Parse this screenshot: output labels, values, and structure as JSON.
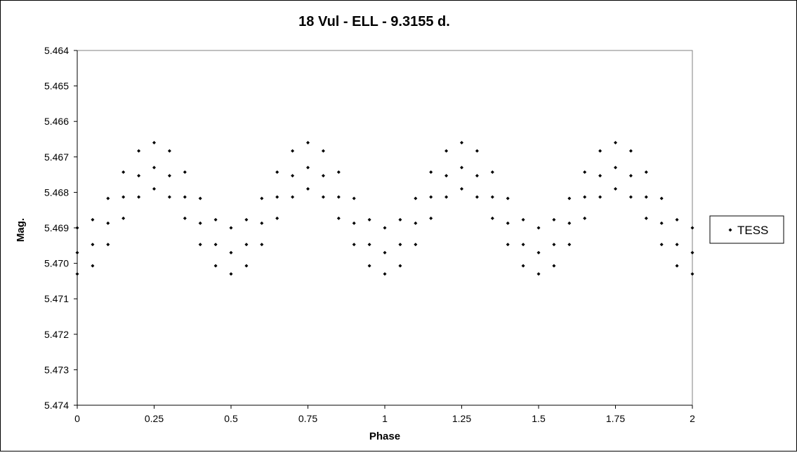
{
  "chart_data": {
    "type": "scatter",
    "title": "18 Vul - ELL - 9.3155 d.",
    "x_label": "Phase",
    "y_label": "Mag.",
    "xlim": [
      0,
      2
    ],
    "xticks": [
      0,
      0.25,
      0.5,
      0.75,
      1,
      1.25,
      1.5,
      1.75,
      2
    ],
    "ylim": [
      5.474,
      5.464
    ],
    "yticks": [
      5.464,
      5.465,
      5.466,
      5.467,
      5.468,
      5.469,
      {
        "value": 5.47,
        "label": "5.470"
      },
      5.471,
      5.472,
      5.473,
      5.474
    ],
    "legend": "right",
    "grid": false,
    "series": [
      {
        "name": "TESS",
        "color": "#000000",
        "x": [
          0,
          0,
          0,
          0.05,
          0.05,
          0.05,
          0.1,
          0.1,
          0.1,
          0.15,
          0.15,
          0.15,
          0.2,
          0.2,
          0.2,
          0.25,
          0.25,
          0.25,
          0.3,
          0.3,
          0.3,
          0.35,
          0.35,
          0.35,
          0.4,
          0.4,
          0.4,
          0.45,
          0.45,
          0.45,
          0.5,
          0.5,
          0.5,
          0.55,
          0.55,
          0.55,
          0.6,
          0.6,
          0.6,
          0.65,
          0.65,
          0.65,
          0.7,
          0.7,
          0.7,
          0.75,
          0.75,
          0.75,
          0.8,
          0.8,
          0.8,
          0.85,
          0.85,
          0.85,
          0.9,
          0.9,
          0.9,
          0.95,
          0.95,
          0.95,
          1,
          1,
          1,
          1.05,
          1.05,
          1.05,
          1.1,
          1.1,
          1.1,
          1.15,
          1.15,
          1.15,
          1.2,
          1.2,
          1.2,
          1.25,
          1.25,
          1.25,
          1.3,
          1.3,
          1.3,
          1.35,
          1.35,
          1.35,
          1.4,
          1.4,
          1.4,
          1.45,
          1.45,
          1.45,
          1.5,
          1.5,
          1.5,
          1.55,
          1.55,
          1.55,
          1.6,
          1.6,
          1.6,
          1.65,
          1.65,
          1.65,
          1.7,
          1.7,
          1.7,
          1.75,
          1.75,
          1.75,
          1.8,
          1.8,
          1.8,
          1.85,
          1.85,
          1.85,
          1.9,
          1.9,
          1.9,
          1.95,
          1.95,
          1.95,
          2,
          2,
          2
        ],
        "values": [
          5.469,
          5.4697,
          5.4703,
          5.46877,
          5.46947,
          5.47007,
          5.46817,
          5.46887,
          5.46947,
          5.46743,
          5.46813,
          5.46873,
          5.46683,
          5.46753,
          5.46813,
          5.4666,
          5.4673,
          5.4679,
          5.46683,
          5.46753,
          5.46813,
          5.46743,
          5.46813,
          5.46873,
          5.46817,
          5.46887,
          5.46947,
          5.46877,
          5.46947,
          5.47007,
          5.469,
          5.4697,
          5.4703,
          5.46877,
          5.46947,
          5.47007,
          5.46817,
          5.46887,
          5.46947,
          5.46743,
          5.46813,
          5.46873,
          5.46683,
          5.46753,
          5.46813,
          5.4666,
          5.4673,
          5.4679,
          5.46683,
          5.46753,
          5.46813,
          5.46743,
          5.46813,
          5.46873,
          5.46817,
          5.46887,
          5.46947,
          5.46877,
          5.46947,
          5.47007,
          5.469,
          5.4697,
          5.4703,
          5.46877,
          5.46947,
          5.47007,
          5.46817,
          5.46887,
          5.46947,
          5.46743,
          5.46813,
          5.46873,
          5.46683,
          5.46753,
          5.46813,
          5.4666,
          5.4673,
          5.4679,
          5.46683,
          5.46753,
          5.46813,
          5.46743,
          5.46813,
          5.46873,
          5.46817,
          5.46887,
          5.46947,
          5.46877,
          5.46947,
          5.47007,
          5.469,
          5.4697,
          5.4703,
          5.46877,
          5.46947,
          5.47007,
          5.46817,
          5.46887,
          5.46947,
          5.46743,
          5.46813,
          5.46873,
          5.46683,
          5.46753,
          5.46813,
          5.4666,
          5.4673,
          5.4679,
          5.46683,
          5.46753,
          5.46813,
          5.46743,
          5.46813,
          5.46873,
          5.46817,
          5.46887,
          5.46947,
          5.46877,
          5.46947,
          5.47007,
          5.469,
          5.4697,
          5.4703
        ]
      }
    ]
  }
}
